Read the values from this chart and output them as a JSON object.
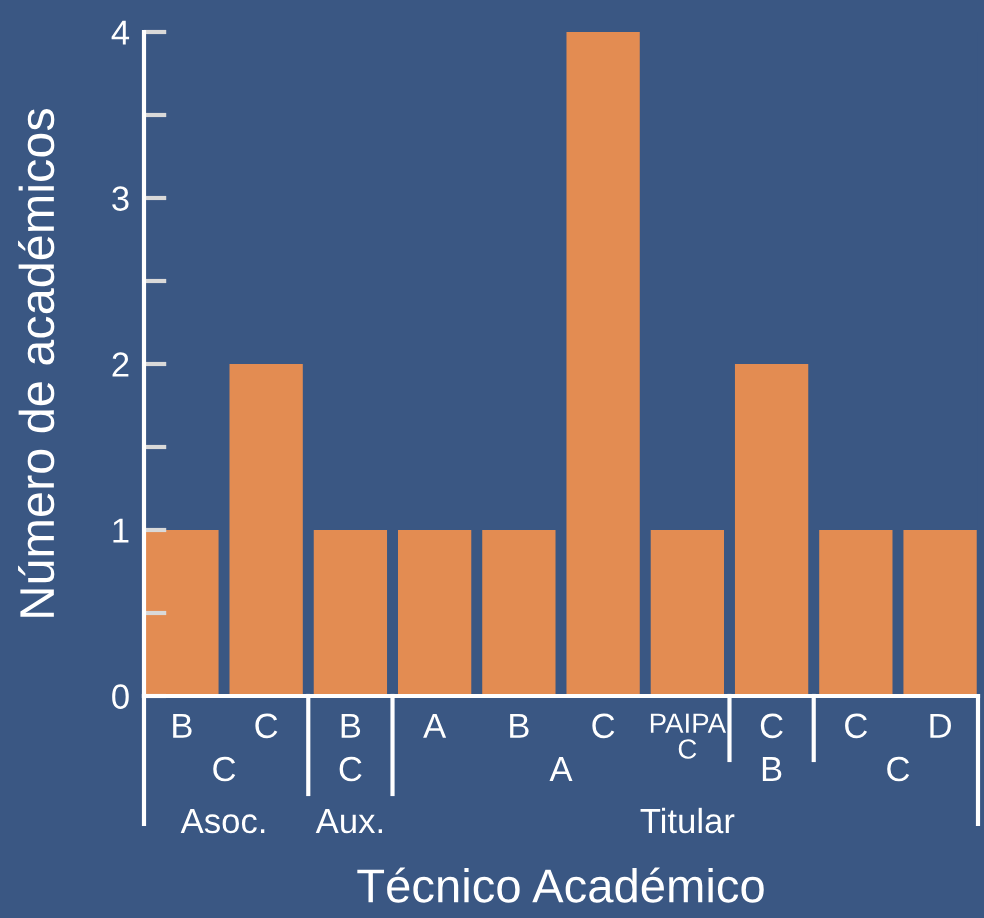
{
  "chart_data": {
    "type": "bar",
    "xlabel": "Técnico Académico",
    "ylabel": "Número de académicos",
    "categories": [
      "B",
      "C",
      "B",
      "A",
      "B",
      "C",
      "PAIPA\nC",
      "C",
      "C",
      "D"
    ],
    "values": [
      1,
      2,
      1,
      1,
      1,
      4,
      1,
      2,
      1,
      1
    ],
    "color": "#e38c52",
    "ylim": [
      0,
      4
    ],
    "yticks": [
      0,
      {
        "value": 0.5,
        "label": null
      },
      1,
      {
        "value": 1.5,
        "label": null
      },
      2,
      {
        "value": 2.5,
        "label": null
      },
      3,
      {
        "value": 3.5,
        "label": null
      },
      4
    ],
    "annotations": [
      "C",
      "C",
      "A",
      "B",
      "C",
      "Asoc.",
      "Aux.",
      "Titular"
    ]
  }
}
